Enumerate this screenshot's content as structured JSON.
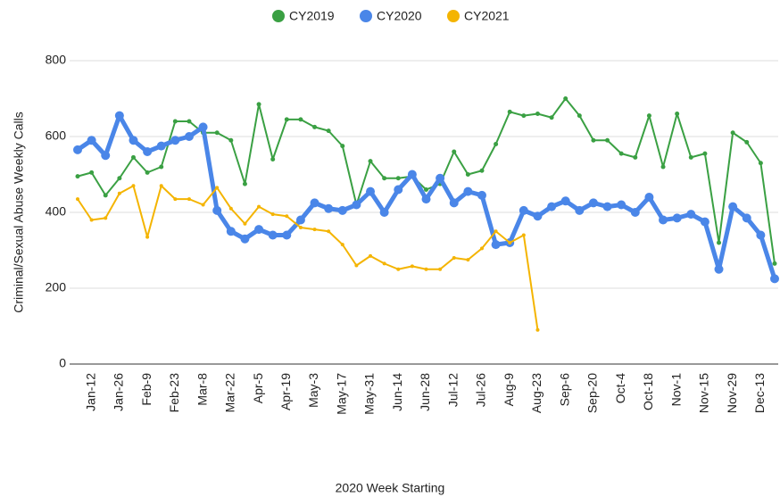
{
  "chart_data": {
    "type": "line",
    "x_label": "2020 Week Starting",
    "y_label": "Criminal/Sexual Abuse Weekly Calls",
    "categories": [
      null,
      "Jan-12",
      null,
      "Jan-26",
      null,
      "Feb-9",
      null,
      "Feb-23",
      null,
      "Mar-8",
      null,
      "Mar-22",
      null,
      "Apr-5",
      null,
      "Apr-19",
      null,
      "May-3",
      null,
      "May-17",
      null,
      "May-31",
      null,
      "Jun-14",
      null,
      "Jun-28",
      null,
      "Jul-12",
      null,
      "Jul-26",
      null,
      "Aug-9",
      null,
      "Aug-23",
      null,
      "Sep-6",
      null,
      "Sep-20",
      null,
      "Oct-4",
      null,
      "Oct-18",
      null,
      "Nov-1",
      null,
      "Nov-15",
      null,
      "Nov-29",
      null,
      "Dec-13",
      null
    ],
    "series": [
      {
        "name": "CY2019",
        "color": "#3aa043",
        "values": [
          495,
          505,
          445,
          490,
          545,
          505,
          520,
          640,
          640,
          610,
          610,
          590,
          475,
          685,
          540,
          645,
          645,
          625,
          615,
          575,
          420,
          535,
          490,
          490,
          495,
          460,
          475,
          560,
          500,
          510,
          580,
          665,
          655,
          660,
          650,
          700,
          655,
          590,
          590,
          555,
          545,
          655,
          520,
          660,
          545,
          555,
          320,
          610,
          585,
          530,
          265
        ]
      },
      {
        "name": "CY2020",
        "color": "#4a86e8",
        "values": [
          565,
          590,
          550,
          655,
          590,
          560,
          575,
          590,
          600,
          625,
          405,
          350,
          330,
          355,
          340,
          340,
          380,
          425,
          410,
          405,
          420,
          455,
          400,
          460,
          500,
          435,
          490,
          425,
          455,
          445,
          315,
          320,
          405,
          390,
          415,
          430,
          405,
          425,
          415,
          420,
          400,
          440,
          380,
          385,
          395,
          375,
          250,
          415,
          385,
          340,
          225
        ]
      },
      {
        "name": "CY2021",
        "color": "#f4b400",
        "values": [
          435,
          380,
          385,
          450,
          470,
          335,
          470,
          435,
          435,
          420,
          465,
          410,
          370,
          415,
          395,
          390,
          360,
          355,
          350,
          315,
          260,
          285,
          265,
          250,
          258,
          250,
          250,
          280,
          275,
          305,
          350,
          320,
          340,
          90,
          null,
          null,
          null,
          null,
          null,
          null,
          null,
          null,
          null,
          null,
          null,
          null,
          null,
          null,
          null,
          null,
          null
        ]
      }
    ],
    "ylim": [
      0,
      800
    ],
    "yticks": [
      0,
      200,
      400,
      600,
      800
    ],
    "grid": true,
    "legend": "top"
  }
}
